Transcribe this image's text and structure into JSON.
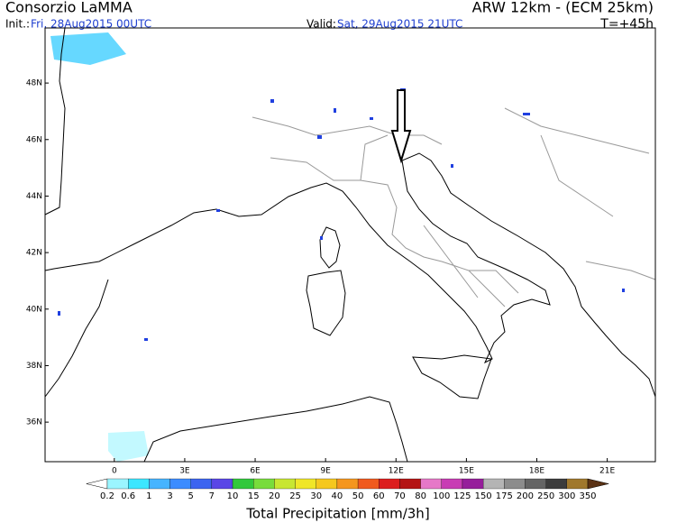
{
  "header": {
    "left_title": "Consorzio LaMMA",
    "right_title": "ARW 12km - (ECM 25km)",
    "init_label": "Init.:",
    "init_time": "Fri, 28Aug2015 00UTC",
    "valid_label": "Valid:",
    "valid_time": "Sat, 29Aug2015 21UTC",
    "forecast_step": "T=+45h"
  },
  "map": {
    "xlim": [
      -2.95,
      23.05
    ],
    "ylim": [
      34.6,
      49.95
    ],
    "lon_ticks": [
      0,
      {
        "value": 3,
        "label": "3E"
      },
      {
        "value": 6,
        "label": "6E"
      },
      {
        "value": 9,
        "label": "9E"
      },
      {
        "value": 12,
        "label": "12E"
      },
      {
        "value": 15,
        "label": "15E"
      },
      {
        "value": 18,
        "label": "18E"
      },
      {
        "value": 21,
        "label": "21E"
      }
    ],
    "lat_ticks": [
      {
        "value": 48,
        "label": "48N"
      },
      {
        "value": 46,
        "label": "46N"
      },
      {
        "value": 44,
        "label": "44N"
      },
      {
        "value": 42,
        "label": "42N"
      },
      {
        "value": 40,
        "label": "40N"
      },
      {
        "value": 38,
        "label": "38N"
      },
      {
        "value": 36,
        "label": "36N"
      }
    ]
  },
  "colorbar": {
    "title": "Total Precipitation [mm/3h]",
    "levels": [
      0.2,
      0.6,
      1,
      3,
      5,
      7,
      10,
      15,
      20,
      25,
      30,
      40,
      50,
      60,
      70,
      80,
      100,
      125,
      150,
      175,
      200,
      250,
      300,
      350
    ],
    "colors": [
      "#9bf5ff",
      "#3ce6ff",
      "#46b4ff",
      "#3c8cff",
      "#3c64f0",
      "#5a46e6",
      "#32c83c",
      "#78dc3c",
      "#c8e632",
      "#f0e628",
      "#f5c81e",
      "#f5961e",
      "#f05a1e",
      "#dc1e1e",
      "#b41414",
      "#e678c8",
      "#c83cb4",
      "#961e9b",
      "#b4b4b4",
      "#8c8c8c",
      "#646464",
      "#3c3c3c",
      "#a0782d",
      "#7d5019"
    ],
    "under_color": "#ffffff",
    "over_color": "#5a3214"
  }
}
